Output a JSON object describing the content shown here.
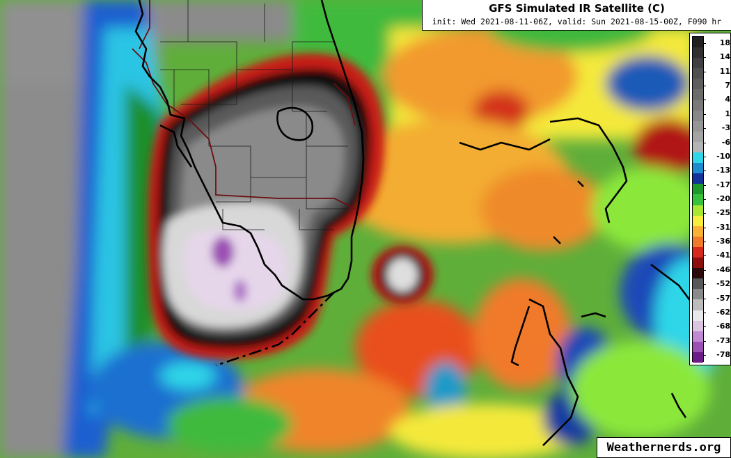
{
  "header": {
    "title": "GFS Simulated IR Satellite (C)",
    "subtitle": "init: Wed 2021-08-11-06Z, valid: Sun 2021-08-15-00Z, F090 hr"
  },
  "colorbar": {
    "labels": [
      "18",
      "14",
      "11",
      "7",
      "4",
      "1",
      "-3",
      "-6",
      "-10",
      "-13",
      "-17",
      "-20",
      "-25",
      "-31",
      "-36",
      "-41",
      "-46",
      "-52",
      "-57",
      "-62",
      "-68",
      "-73",
      "-78"
    ],
    "ramp_colors": [
      "#202020",
      "#303030",
      "#404040",
      "#505050",
      "#5e5e5e",
      "#6c6c6c",
      "#7a7a7a",
      "#888888",
      "#969696",
      "#a4a4a4",
      "#b4b4b4",
      "#2fd6e8",
      "#1d8ccf",
      "#13339a",
      "#1e9a2a",
      "#36c23a",
      "#a8e832",
      "#f6ee3a",
      "#f7b233",
      "#f07a2c",
      "#d6281c",
      "#8e0e0e",
      "#2b0a0a",
      "#585858",
      "#8a8a8a",
      "#bcbcbc",
      "#e8e8e8",
      "#dcc4e0",
      "#c08ad2",
      "#9c50b4",
      "#6e1c8a"
    ]
  },
  "credit": {
    "text": "Weathernerds.org"
  },
  "colors": {
    "coastline": "#000000",
    "state_border": "#6a0f0f",
    "county_line": "#1a1a1a"
  }
}
